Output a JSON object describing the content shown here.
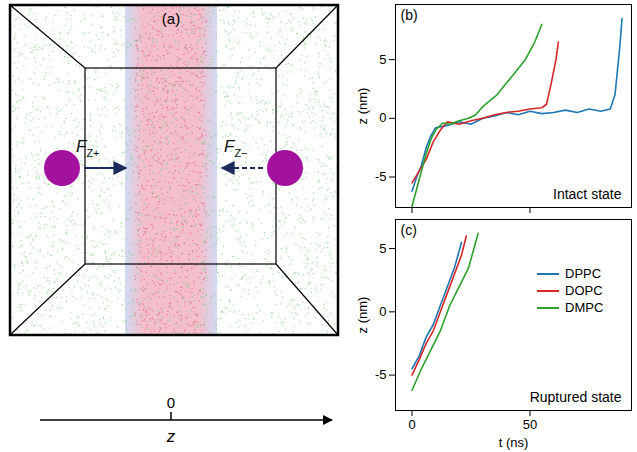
{
  "diagram": {
    "panel_label": "(a)",
    "forces": [
      {
        "symbol": "F",
        "subscript": "Z+",
        "arrow": "solid"
      },
      {
        "symbol": "F",
        "subscript": "Z−",
        "arrow": "dashed"
      }
    ],
    "axis": {
      "tick": "0",
      "label": "z"
    }
  },
  "chart_data": [
    {
      "type": "line",
      "panel_label": "(b)",
      "annotation": "Intact state",
      "ylabel": "z (nm)",
      "xlim": [
        -7,
        93
      ],
      "xticks": [
        0,
        50
      ],
      "ylim": [
        -7.6,
        9.7
      ],
      "yticks": [
        -5,
        0,
        5
      ],
      "tick_labels": "y",
      "series": [
        {
          "name": "DPPC",
          "color": "#1f77b4",
          "x": [
            0,
            2,
            4,
            6,
            8,
            10,
            15,
            20,
            25,
            30,
            35,
            40,
            45,
            50,
            55,
            60,
            65,
            70,
            75,
            80,
            84,
            86,
            88,
            89
          ],
          "values": [
            -6.2,
            -5,
            -4,
            -2.5,
            -1.5,
            -0.8,
            -0.6,
            -0.3,
            -0.5,
            0,
            0.2,
            0.5,
            0.3,
            0.6,
            0.4,
            0.5,
            0.7,
            0.5,
            0.8,
            0.6,
            0.8,
            2,
            6,
            8.5
          ]
        },
        {
          "name": "DOPC",
          "color": "#d62728",
          "x": [
            0,
            3,
            6,
            9,
            12,
            15,
            20,
            25,
            30,
            35,
            40,
            45,
            50,
            55,
            57,
            59,
            61,
            62
          ],
          "values": [
            -5.5,
            -4.5,
            -3.5,
            -2,
            -1,
            -0.3,
            -0.5,
            -0.2,
            0,
            0.3,
            0.5,
            0.6,
            0.8,
            0.9,
            1.2,
            3,
            5,
            6.5
          ]
        },
        {
          "name": "DMPC",
          "color": "#2ca02c",
          "x": [
            0,
            2,
            4,
            6,
            8,
            10,
            13,
            16,
            20,
            24,
            27,
            30,
            33,
            36,
            40,
            44,
            48,
            52,
            55
          ],
          "values": [
            -7.5,
            -6,
            -4.5,
            -3,
            -1.8,
            -1,
            -0.4,
            -0.5,
            -0.2,
            0,
            0.3,
            1,
            1.5,
            2,
            3,
            4,
            5,
            6.5,
            8
          ]
        }
      ]
    },
    {
      "type": "line",
      "panel_label": "(c)",
      "annotation": "Ruptured state",
      "xlabel": "t (ns)",
      "ylabel": "z (nm)",
      "xlim": [
        -7,
        93
      ],
      "xticks": [
        0,
        50
      ],
      "ylim": [
        -7.8,
        7.3
      ],
      "yticks": [
        -5,
        0,
        5
      ],
      "legend": "right",
      "series": [
        {
          "name": "DPPC",
          "color": "#1f77b4",
          "x": [
            0,
            3,
            6,
            9,
            12,
            15,
            18,
            21
          ],
          "values": [
            -4.5,
            -3.5,
            -2,
            -1,
            0.5,
            2,
            3.5,
            5.5
          ]
        },
        {
          "name": "DOPC",
          "color": "#d62728",
          "x": [
            0,
            3,
            6,
            9,
            12,
            15,
            18,
            21,
            23
          ],
          "values": [
            -5,
            -3.8,
            -2.5,
            -1.5,
            0,
            1.5,
            3,
            4.5,
            6
          ]
        },
        {
          "name": "DMPC",
          "color": "#2ca02c",
          "x": [
            0,
            4,
            8,
            12,
            16,
            20,
            24,
            28
          ],
          "values": [
            -6.2,
            -4.5,
            -3,
            -1.5,
            0.5,
            2,
            3.5,
            6.2
          ]
        }
      ]
    }
  ]
}
